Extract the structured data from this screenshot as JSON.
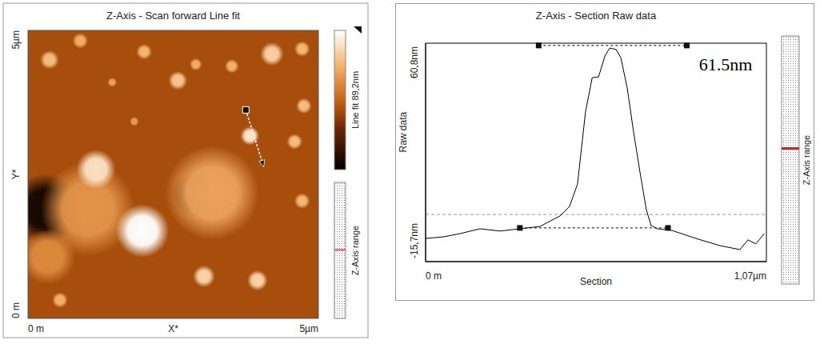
{
  "image_panel": {
    "title": "Z-Axis - Scan forward   Line fit",
    "x_label": "X*",
    "y_label": "Y*",
    "xlim": [
      0,
      5
    ],
    "ylim": [
      0,
      5
    ],
    "xticks": [
      {
        "value": 0,
        "label": "0 m"
      },
      {
        "value": 5,
        "label": "5µm"
      }
    ],
    "yticks": [
      {
        "value": 0,
        "label": "0 m"
      },
      {
        "value": 5,
        "label": "5µm"
      }
    ],
    "colorbar": {
      "label": "Line fit 89,2nm",
      "range": [
        0,
        89.2
      ]
    },
    "range_label": "Z-Axis range",
    "background_height": 38,
    "features": [
      {
        "x": 0.3,
        "y": 1.9,
        "radius": 0.45,
        "height": 5
      },
      {
        "x": 2.9,
        "y": 2.15,
        "radius": 0.3,
        "height": 15
      },
      {
        "x": 1.03,
        "y": 1.9,
        "radius": 0.6,
        "height": 58
      },
      {
        "x": 0.34,
        "y": 1.07,
        "radius": 0.35,
        "height": 55
      },
      {
        "x": 1.17,
        "y": 2.59,
        "radius": 0.25,
        "height": 80
      },
      {
        "x": 1.97,
        "y": 1.52,
        "radius": 0.34,
        "height": 89
      },
      {
        "x": 3.17,
        "y": 2.18,
        "radius": 0.6,
        "height": 62
      },
      {
        "x": 0.37,
        "y": 4.49,
        "radius": 0.12,
        "height": 70
      },
      {
        "x": 0.9,
        "y": 4.82,
        "radius": 0.1,
        "height": 65
      },
      {
        "x": 2.0,
        "y": 4.63,
        "radius": 0.1,
        "height": 68
      },
      {
        "x": 2.58,
        "y": 4.13,
        "radius": 0.12,
        "height": 72
      },
      {
        "x": 2.89,
        "y": 4.41,
        "radius": 0.08,
        "height": 65
      },
      {
        "x": 3.51,
        "y": 4.38,
        "radius": 0.09,
        "height": 66
      },
      {
        "x": 4.2,
        "y": 4.59,
        "radius": 0.15,
        "height": 75
      },
      {
        "x": 4.72,
        "y": 4.68,
        "radius": 0.1,
        "height": 68
      },
      {
        "x": 3.82,
        "y": 3.17,
        "radius": 0.12,
        "height": 82
      },
      {
        "x": 4.59,
        "y": 3.07,
        "radius": 0.1,
        "height": 70
      },
      {
        "x": 4.75,
        "y": 3.69,
        "radius": 0.1,
        "height": 70
      },
      {
        "x": 3.03,
        "y": 0.73,
        "radius": 0.14,
        "height": 76
      },
      {
        "x": 3.95,
        "y": 0.66,
        "radius": 0.13,
        "height": 76
      },
      {
        "x": 1.45,
        "y": 4.1,
        "radius": 0.06,
        "height": 62
      },
      {
        "x": 0.55,
        "y": 0.32,
        "radius": 0.1,
        "height": 66
      },
      {
        "x": 4.72,
        "y": 2.04,
        "radius": 0.1,
        "height": 68
      },
      {
        "x": 1.83,
        "y": 3.42,
        "radius": 0.06,
        "height": 60
      }
    ],
    "section_line": {
      "start": [
        3.75,
        3.62
      ],
      "end": [
        4.06,
        2.63
      ]
    }
  },
  "chart_data": {
    "type": "line",
    "title": "Z-Axis - Section   Raw data",
    "x_label": "Section",
    "y_label": "Raw data",
    "side_label": "Z-Axis range",
    "color": "#000000",
    "x": [
      0.0,
      0.058,
      0.108,
      0.171,
      0.234,
      0.296,
      0.359,
      0.422,
      0.452,
      0.477,
      0.502,
      0.523,
      0.543,
      0.563,
      0.578,
      0.598,
      0.613,
      0.633,
      0.653,
      0.673,
      0.693,
      0.708,
      0.728,
      0.774,
      0.849,
      0.924,
      0.987,
      1.012,
      1.037,
      1.063
    ],
    "values": [
      -7.6,
      -7.0,
      -5.9,
      -4.2,
      -5.0,
      -4.2,
      -3.4,
      0.3,
      3.6,
      11.5,
      36.7,
      48.7,
      49.0,
      56.3,
      59.1,
      58.6,
      55.7,
      45.1,
      29.7,
      15.7,
      2.5,
      -3.1,
      -4.2,
      -4.8,
      -7.6,
      -10.1,
      -11.5,
      -8.1,
      -9.5,
      -5.9
    ],
    "xlim": [
      0,
      1.07
    ],
    "ylim": [
      -15.7,
      60.8
    ],
    "xticks": [
      {
        "value": 0,
        "label": "0 m"
      },
      {
        "value": 1.07,
        "label": "1,07µm"
      }
    ],
    "yticks": [
      {
        "value": -15.7,
        "label": "-15,7nm"
      },
      {
        "value": 60.8,
        "label": "60,8nm"
      }
    ],
    "grid": false,
    "baseline": 0.8,
    "measure": {
      "label": "61.5nm",
      "top": {
        "x": [
          0.355,
          0.82
        ],
        "y": 60.0
      },
      "bottom": {
        "x": [
          0.296,
          0.761
        ],
        "y": -3.9
      }
    }
  }
}
